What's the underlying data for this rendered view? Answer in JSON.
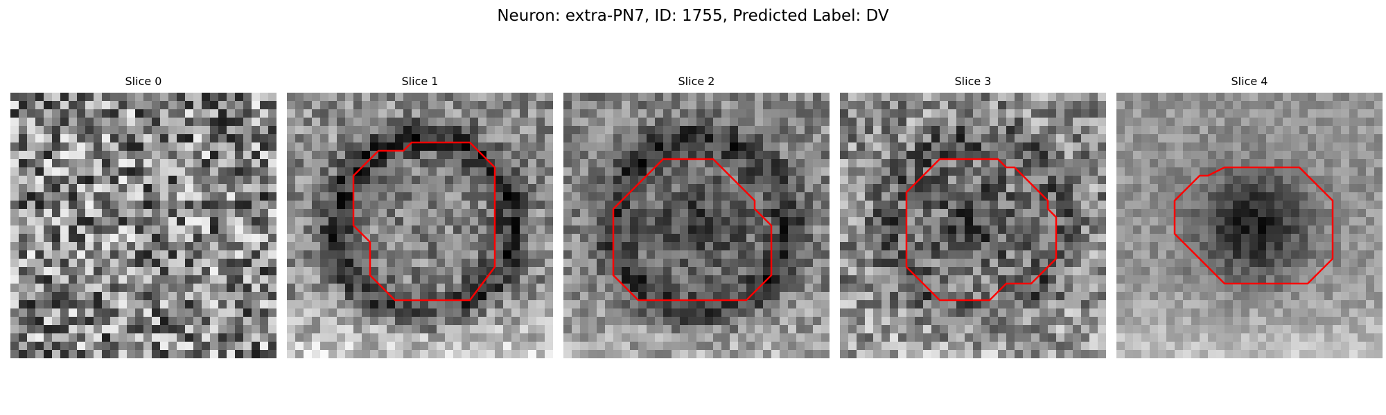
{
  "figure": {
    "title": "Neuron: extra-PN7, ID: 1755, Predicted Label: DV"
  },
  "slices": [
    {
      "label": "Slice 0",
      "intensity": {
        "mean": 0.53,
        "contrast": 0.42,
        "noise": 0.42,
        "ring": 0.0,
        "center_dark": 0.0,
        "bright_bottom": 0.0,
        "seed": 11
      },
      "contour": []
    },
    {
      "label": "Slice 1",
      "intensity": {
        "mean": 0.55,
        "contrast": 0.28,
        "noise": 0.22,
        "ring": 0.35,
        "center_dark": 0.05,
        "bright_bottom": 0.25,
        "seed": 23
      },
      "contour": [
        [
          15,
          6
        ],
        [
          22,
          6
        ],
        [
          25,
          9
        ],
        [
          25,
          21
        ],
        [
          22,
          25
        ],
        [
          13,
          25
        ],
        [
          10,
          22
        ],
        [
          10,
          18
        ],
        [
          8,
          16
        ],
        [
          8,
          10
        ],
        [
          11,
          7
        ],
        [
          14,
          7
        ]
      ]
    },
    {
      "label": "Slice 2",
      "intensity": {
        "mean": 0.52,
        "contrast": 0.3,
        "noise": 0.2,
        "ring": 0.3,
        "center_dark": 0.25,
        "bright_bottom": 0.15,
        "seed": 37
      },
      "contour": [
        [
          15,
          8
        ],
        [
          18,
          8
        ],
        [
          23,
          13
        ],
        [
          23,
          14
        ],
        [
          25,
          16
        ],
        [
          25,
          22
        ],
        [
          22,
          25
        ],
        [
          9,
          25
        ],
        [
          6,
          22
        ],
        [
          6,
          14
        ],
        [
          12,
          8
        ]
      ]
    },
    {
      "label": "Slice 3",
      "intensity": {
        "mean": 0.55,
        "contrast": 0.3,
        "noise": 0.28,
        "ring": 0.18,
        "center_dark": 0.25,
        "bright_bottom": 0.1,
        "seed": 51
      },
      "contour": [
        [
          12,
          8
        ],
        [
          19,
          8
        ],
        [
          20,
          9
        ],
        [
          21,
          9
        ],
        [
          25,
          13
        ],
        [
          25,
          14
        ],
        [
          26,
          15
        ],
        [
          26,
          20
        ],
        [
          23,
          23
        ],
        [
          22,
          23
        ],
        [
          20,
          23
        ],
        [
          18,
          25
        ],
        [
          12,
          25
        ],
        [
          8,
          21
        ],
        [
          8,
          12
        ]
      ]
    },
    {
      "label": "Slice 4",
      "intensity": {
        "mean": 0.58,
        "contrast": 0.3,
        "noise": 0.12,
        "ring": 0.0,
        "center_dark": 0.45,
        "bright_bottom": 0.2,
        "seed": 67
      },
      "contour": [
        [
          13,
          9
        ],
        [
          22,
          9
        ],
        [
          26,
          13
        ],
        [
          26,
          20
        ],
        [
          23,
          23
        ],
        [
          13,
          23
        ],
        [
          11,
          21
        ],
        [
          10,
          20
        ],
        [
          7,
          17
        ],
        [
          7,
          13
        ],
        [
          10,
          10
        ],
        [
          11,
          10
        ]
      ]
    }
  ],
  "colors": {
    "contour": "#ff0000",
    "background": "#ffffff"
  }
}
